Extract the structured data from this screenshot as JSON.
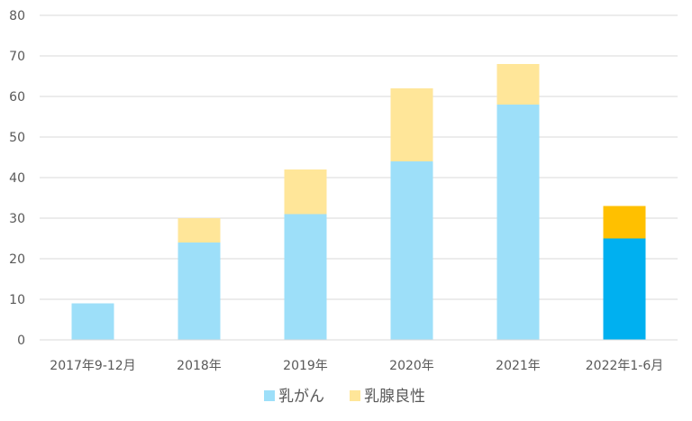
{
  "chart_data": {
    "type": "bar",
    "stacked": true,
    "categories": [
      "2017年9-12月",
      "2018年",
      "2019年",
      "2020年",
      "2021年",
      "2022年1-6月"
    ],
    "series": [
      {
        "name": "乳がん",
        "values": [
          9,
          24,
          31,
          44,
          58,
          25
        ],
        "color": "#9ddff9",
        "highlight_color": "#00b0f0"
      },
      {
        "name": "乳腺良性",
        "values": [
          0,
          6,
          11,
          18,
          10,
          8
        ],
        "color": "#ffe699",
        "highlight_color": "#ffc000"
      }
    ],
    "highlight_category_index": 5,
    "ylim": [
      0,
      80
    ],
    "yticks": [
      0,
      10,
      20,
      30,
      40,
      50,
      60,
      70,
      80
    ],
    "grid": true,
    "legend_position": "bottom"
  }
}
